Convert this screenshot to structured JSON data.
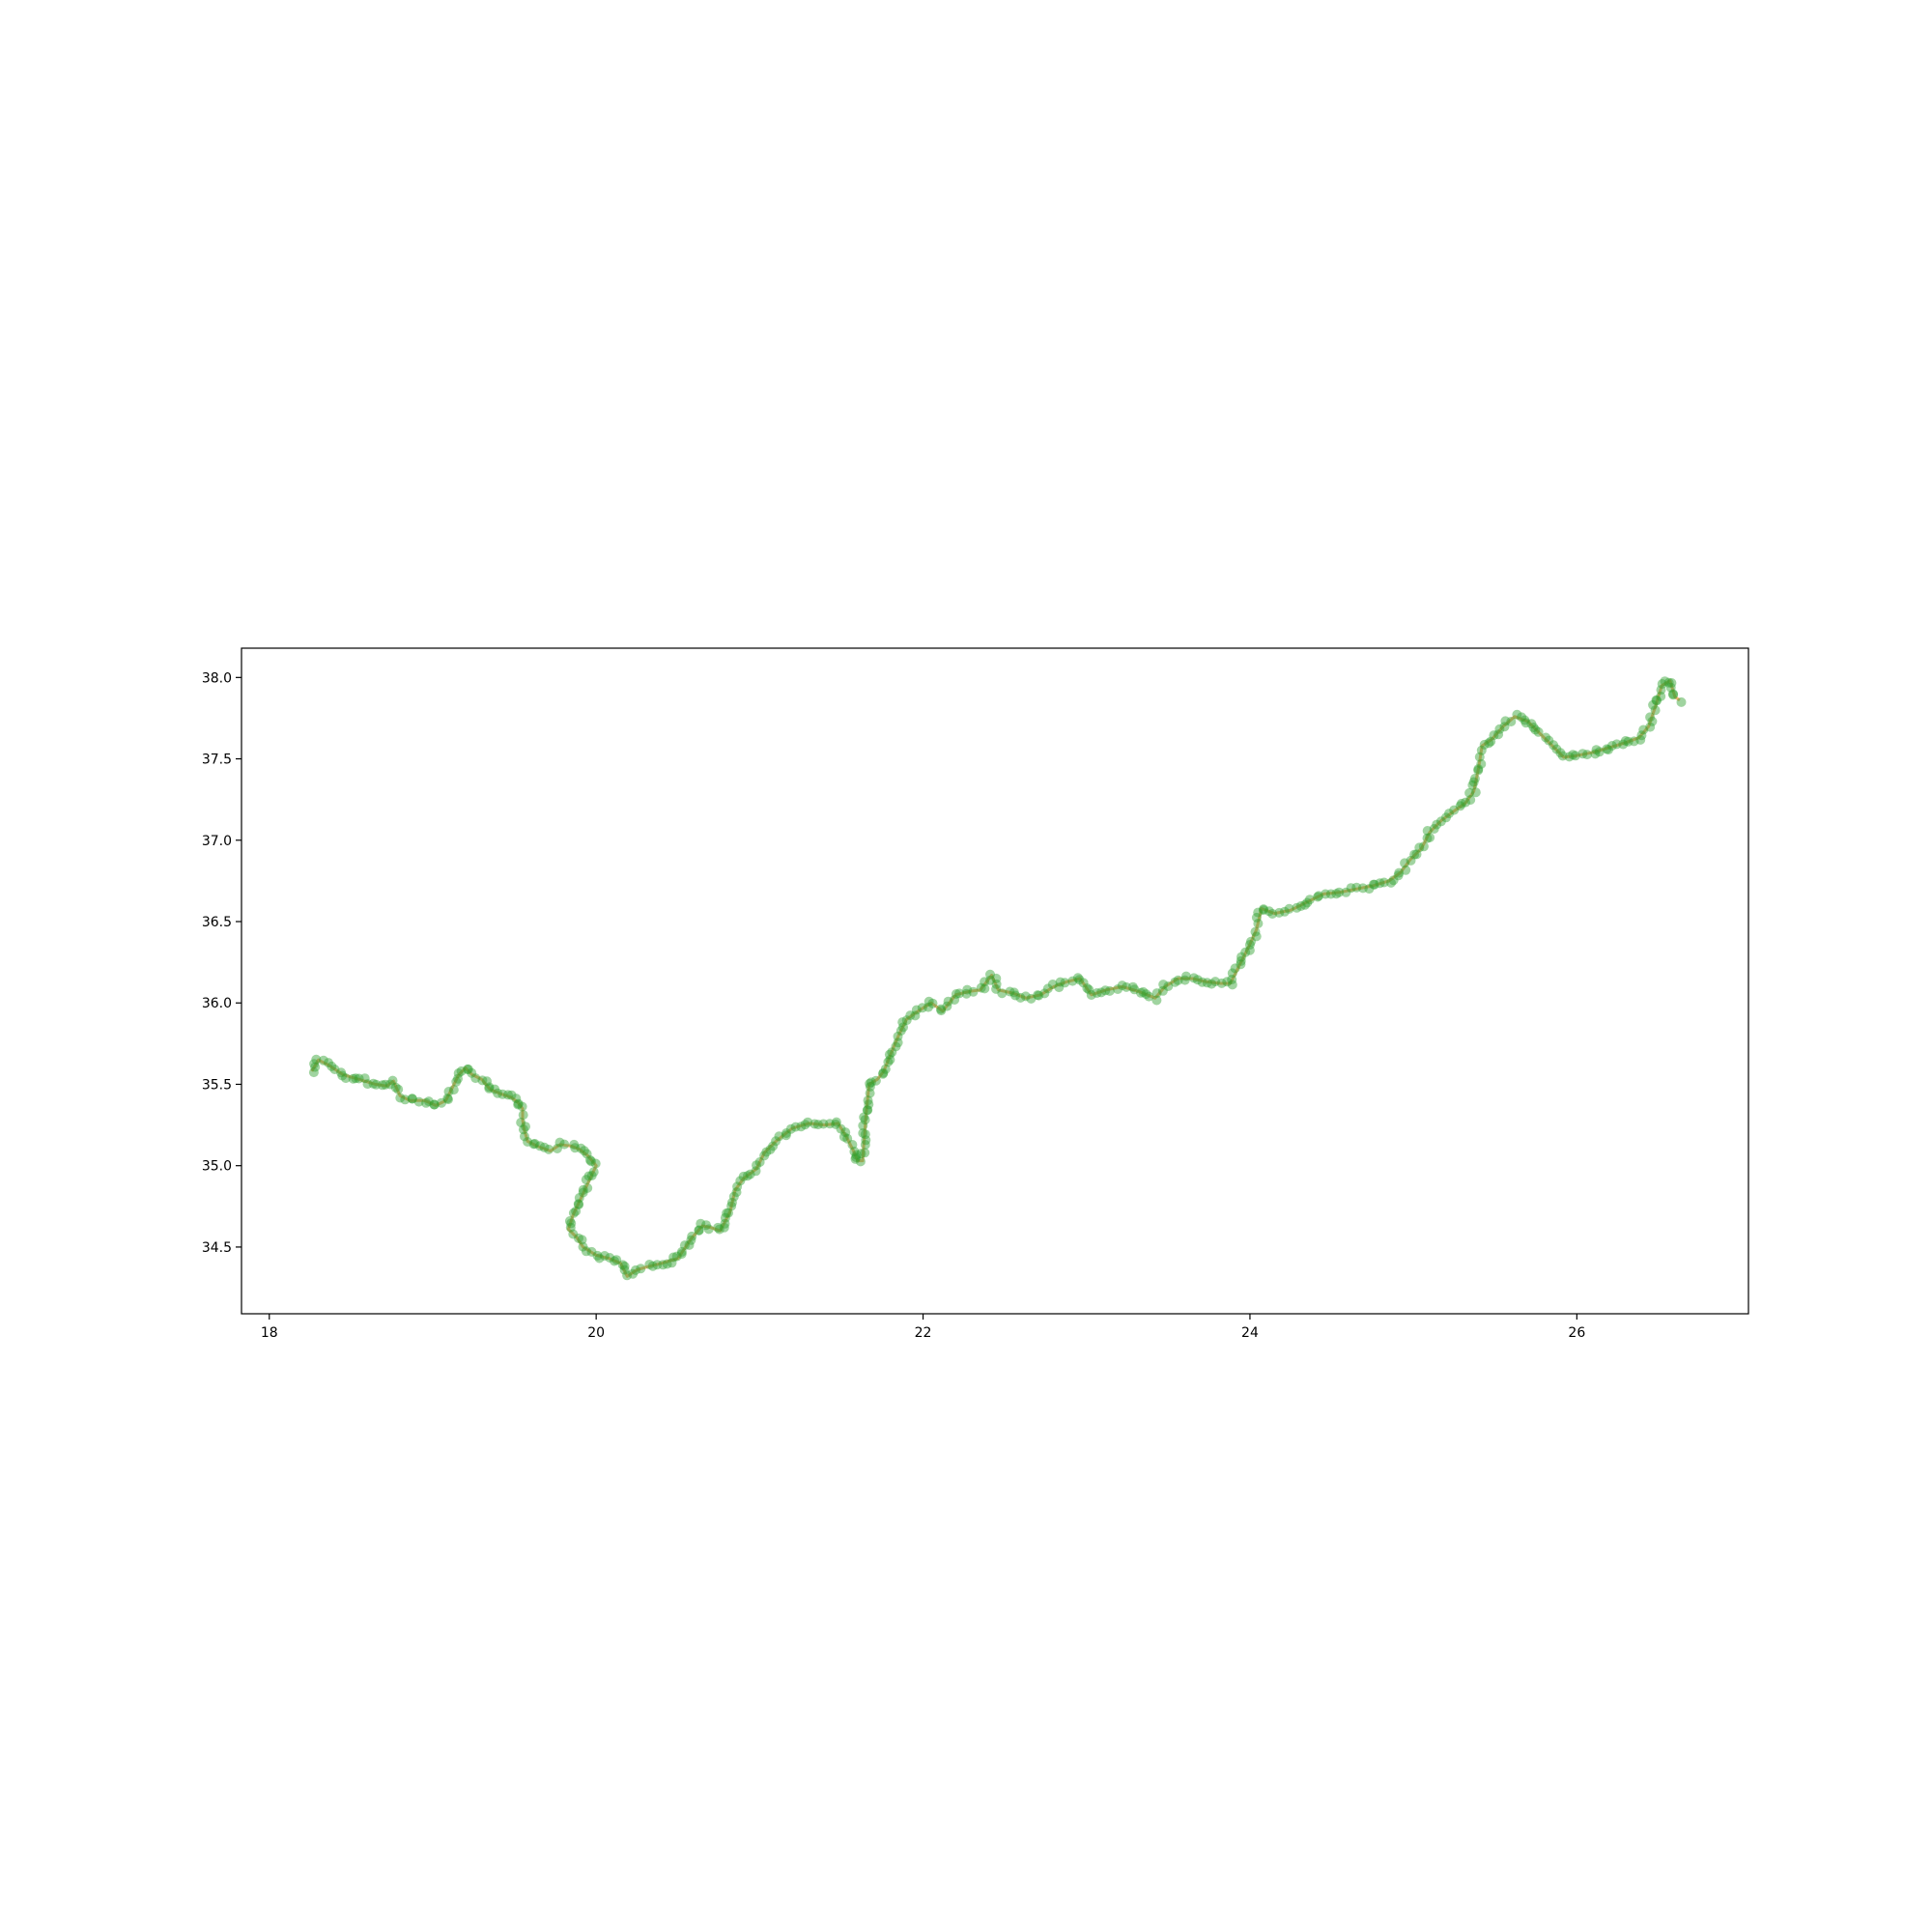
{
  "chart_data": {
    "type": "scatter",
    "title": "",
    "xlabel": "",
    "ylabel": "",
    "xlim": [
      17.83,
      27.05
    ],
    "ylim": [
      34.09,
      38.18
    ],
    "xticks": [
      18,
      20,
      22,
      24,
      26
    ],
    "yticks": [
      34.5,
      35.0,
      35.5,
      36.0,
      36.5,
      37.0,
      37.5,
      38.0
    ],
    "xtick_labels": [
      "18",
      "20",
      "22",
      "24",
      "26"
    ],
    "ytick_labels": [
      "34.5",
      "35.0",
      "35.5",
      "36.0",
      "36.5",
      "37.0",
      "37.5",
      "38.0"
    ],
    "grid": false,
    "legend": "none",
    "line_color": "#f4a460",
    "marker_color": "#2ca02c",
    "series": [
      {
        "role": "track",
        "points": [
          [
            18.26,
            35.58
          ],
          [
            18.3,
            35.65
          ],
          [
            18.36,
            35.62
          ],
          [
            18.45,
            35.56
          ],
          [
            18.55,
            35.53
          ],
          [
            18.65,
            35.5
          ],
          [
            18.72,
            35.49
          ],
          [
            18.76,
            35.52
          ],
          [
            18.8,
            35.43
          ],
          [
            18.86,
            35.4
          ],
          [
            18.95,
            35.4
          ],
          [
            19.02,
            35.37
          ],
          [
            19.08,
            35.4
          ],
          [
            19.12,
            35.48
          ],
          [
            19.16,
            35.56
          ],
          [
            19.2,
            35.6
          ],
          [
            19.24,
            35.56
          ],
          [
            19.3,
            35.53
          ],
          [
            19.35,
            35.47
          ],
          [
            19.42,
            35.44
          ],
          [
            19.48,
            35.42
          ],
          [
            19.52,
            35.39
          ],
          [
            19.55,
            35.35
          ],
          [
            19.55,
            35.28
          ],
          [
            19.56,
            35.22
          ],
          [
            19.58,
            35.15
          ],
          [
            19.64,
            35.12
          ],
          [
            19.72,
            35.09
          ],
          [
            19.78,
            35.13
          ],
          [
            19.85,
            35.12
          ],
          [
            19.9,
            35.1
          ],
          [
            19.95,
            35.06
          ],
          [
            20.0,
            35.0
          ],
          [
            19.93,
            34.85
          ],
          [
            19.86,
            34.7
          ],
          [
            19.83,
            34.61
          ],
          [
            19.88,
            34.56
          ],
          [
            19.92,
            34.5
          ],
          [
            20.0,
            34.45
          ],
          [
            20.08,
            34.43
          ],
          [
            20.15,
            34.4
          ],
          [
            20.19,
            34.32
          ],
          [
            20.25,
            34.36
          ],
          [
            20.32,
            34.38
          ],
          [
            20.4,
            34.4
          ],
          [
            20.5,
            34.43
          ],
          [
            20.58,
            34.55
          ],
          [
            20.65,
            34.63
          ],
          [
            20.7,
            34.62
          ],
          [
            20.76,
            34.6
          ],
          [
            20.82,
            34.72
          ],
          [
            20.85,
            34.85
          ],
          [
            20.9,
            34.92
          ],
          [
            20.98,
            34.98
          ],
          [
            21.03,
            35.08
          ],
          [
            21.1,
            35.15
          ],
          [
            21.2,
            35.23
          ],
          [
            21.3,
            35.26
          ],
          [
            21.4,
            35.25
          ],
          [
            21.48,
            35.26
          ],
          [
            21.53,
            35.18
          ],
          [
            21.57,
            35.1
          ],
          [
            21.6,
            35.03
          ],
          [
            21.63,
            35.03
          ],
          [
            21.65,
            35.3
          ],
          [
            21.67,
            35.5
          ],
          [
            21.72,
            35.53
          ],
          [
            21.76,
            35.58
          ],
          [
            21.8,
            35.68
          ],
          [
            21.85,
            35.8
          ],
          [
            21.9,
            35.9
          ],
          [
            21.97,
            35.95
          ],
          [
            22.05,
            36.0
          ],
          [
            22.12,
            35.95
          ],
          [
            22.2,
            36.05
          ],
          [
            22.28,
            36.07
          ],
          [
            22.35,
            36.08
          ],
          [
            22.42,
            36.17
          ],
          [
            22.46,
            36.08
          ],
          [
            22.55,
            36.06
          ],
          [
            22.63,
            36.03
          ],
          [
            22.72,
            36.05
          ],
          [
            22.8,
            36.1
          ],
          [
            22.88,
            36.13
          ],
          [
            22.96,
            36.15
          ],
          [
            23.03,
            36.05
          ],
          [
            23.12,
            36.08
          ],
          [
            23.22,
            36.1
          ],
          [
            23.32,
            36.07
          ],
          [
            23.42,
            36.03
          ],
          [
            23.48,
            36.1
          ],
          [
            23.56,
            36.15
          ],
          [
            23.65,
            36.15
          ],
          [
            23.73,
            36.13
          ],
          [
            23.82,
            36.12
          ],
          [
            23.88,
            36.12
          ],
          [
            23.92,
            36.2
          ],
          [
            23.96,
            36.28
          ],
          [
            24.0,
            36.36
          ],
          [
            24.04,
            36.45
          ],
          [
            24.07,
            36.58
          ],
          [
            24.15,
            36.55
          ],
          [
            24.25,
            36.57
          ],
          [
            24.35,
            36.62
          ],
          [
            24.45,
            36.67
          ],
          [
            24.55,
            36.68
          ],
          [
            24.65,
            36.7
          ],
          [
            24.75,
            36.72
          ],
          [
            24.85,
            36.75
          ],
          [
            24.92,
            36.8
          ],
          [
            24.98,
            36.88
          ],
          [
            25.05,
            36.95
          ],
          [
            25.1,
            37.05
          ],
          [
            25.17,
            37.12
          ],
          [
            25.25,
            37.18
          ],
          [
            25.32,
            37.23
          ],
          [
            25.37,
            37.3
          ],
          [
            25.4,
            37.45
          ],
          [
            25.42,
            37.58
          ],
          [
            25.48,
            37.62
          ],
          [
            25.55,
            37.7
          ],
          [
            25.62,
            37.76
          ],
          [
            25.7,
            37.73
          ],
          [
            25.78,
            37.65
          ],
          [
            25.85,
            37.58
          ],
          [
            25.92,
            37.51
          ],
          [
            26.0,
            37.52
          ],
          [
            26.1,
            37.54
          ],
          [
            26.2,
            37.57
          ],
          [
            26.3,
            37.6
          ],
          [
            26.38,
            37.63
          ],
          [
            26.44,
            37.7
          ],
          [
            26.48,
            37.82
          ],
          [
            26.52,
            37.95
          ],
          [
            26.57,
            37.98
          ],
          [
            26.6,
            37.88
          ],
          [
            26.63,
            37.86
          ]
        ]
      }
    ]
  }
}
